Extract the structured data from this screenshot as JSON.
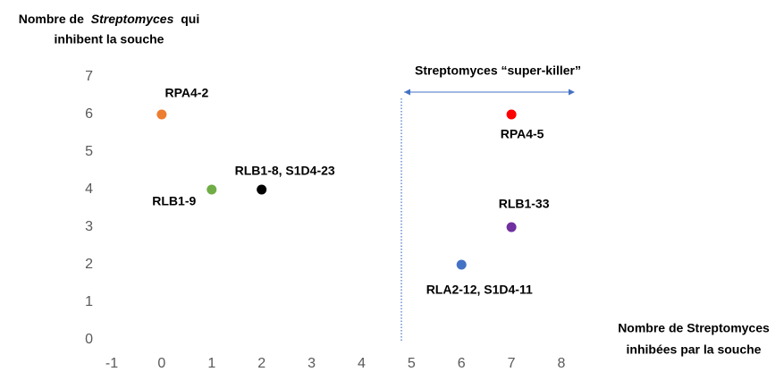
{
  "chart_data": {
    "type": "scatter",
    "ylabel": [
      "Nombre de",
      "Streptomyces",
      "qui",
      "inhibent la souche"
    ],
    "xlabel": [
      "Nombre de Streptomyces",
      "inhibées par la souche"
    ],
    "annotation": "Streptomyces “super-killer”",
    "series": [
      {
        "name": "RPA4-2",
        "color": "#ed7d31",
        "x": [
          0
        ],
        "values": [
          6
        ]
      },
      {
        "name": "RLB1-9",
        "color": "#70ad47",
        "x": [
          1
        ],
        "values": [
          4
        ]
      },
      {
        "name": "RLB1-8, S1D4-23",
        "color": "#000000",
        "x": [
          2
        ],
        "values": [
          4
        ]
      },
      {
        "name": "RPA4-5",
        "color": "#ff0000",
        "x": [
          7
        ],
        "values": [
          6
        ]
      },
      {
        "name": "RLB1-33",
        "color": "#7030a0",
        "x": [
          7
        ],
        "values": [
          3
        ]
      },
      {
        "name": "RLA2-12, S1D4-11",
        "color": "#4472c4",
        "x": [
          6
        ],
        "values": [
          2
        ]
      }
    ],
    "xlim": [
      -1,
      8
    ],
    "xticks": [
      -1,
      0,
      1,
      2,
      3,
      4,
      5,
      6,
      7,
      8
    ],
    "ylim": [
      0,
      7
    ],
    "yticks": [
      0,
      1,
      2,
      3,
      4,
      5,
      6,
      7
    ],
    "grid": false
  }
}
